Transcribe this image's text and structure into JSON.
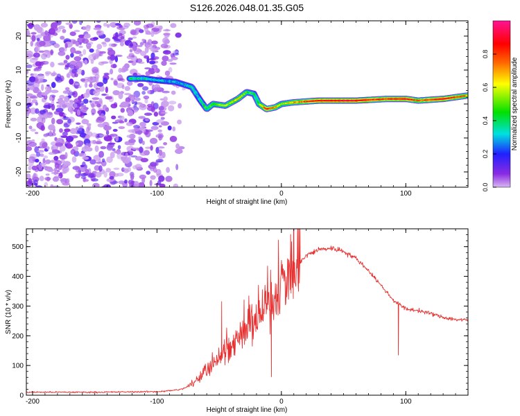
{
  "title": "S126.2026.048.01.35.G05",
  "chart_data": [
    {
      "type": "heatmap",
      "xlabel": "Height of straight line (km)",
      "ylabel": "Frequency (Hz)",
      "xlim": [
        -205,
        150
      ],
      "ylim": [
        -24.5,
        24.5
      ],
      "x_ticks": [
        -200,
        -100,
        0,
        100
      ],
      "y_ticks": [
        -20,
        -10,
        0,
        10,
        20
      ],
      "colorbar": {
        "label": "Normalized spectral amplitude",
        "range": [
          0,
          1
        ],
        "ticks": [
          0.0,
          0.2,
          0.4,
          0.6,
          0.8
        ]
      },
      "colorscale": [
        "#d8b8f0",
        "#8a2be2",
        "#2020ff",
        "#00e0e0",
        "#00e000",
        "#ffff00",
        "#ff6600",
        "#ff0000",
        "#ff1493"
      ],
      "ridge": {
        "description_x": [
          -122,
          -110,
          -100,
          -85,
          -72,
          -65,
          -60,
          -55,
          -45,
          -35,
          -28,
          -22,
          -18,
          -12,
          -5,
          0,
          10,
          30,
          60,
          85,
          100,
          110,
          130,
          150
        ],
        "description_freq": [
          7.5,
          7.5,
          7.0,
          6.5,
          5.0,
          1.0,
          -1.5,
          0.0,
          -0.5,
          1.5,
          3.5,
          3.0,
          0.0,
          -1.5,
          -1.0,
          0.0,
          0.5,
          1.0,
          1.0,
          1.5,
          1.5,
          1.0,
          1.5,
          2.5
        ],
        "peak_amplitude": [
          0.45,
          0.4,
          0.35,
          0.35,
          0.4,
          0.4,
          0.5,
          0.55,
          0.6,
          0.65,
          0.55,
          0.45,
          0.55,
          0.85,
          0.7,
          0.6,
          0.7,
          0.9,
          0.9,
          0.8,
          0.9,
          0.75,
          0.9,
          0.7
        ]
      },
      "noise_region_xlim": [
        -205,
        -85
      ]
    },
    {
      "type": "line",
      "xlabel": "Height of straight line (km)",
      "ylabel": "SNR (10 * v/v)",
      "xlim": [
        -205,
        150
      ],
      "ylim": [
        0,
        560
      ],
      "x_ticks": [
        -200,
        -100,
        0,
        100
      ],
      "y_ticks": [
        0,
        100,
        200,
        300,
        400,
        500
      ],
      "series": [
        {
          "name": "SNR",
          "color": "#e83030",
          "x": [
            -205,
            -150,
            -100,
            -90,
            -80,
            -70,
            -60,
            -50,
            -40,
            -30,
            -20,
            -10,
            0,
            10,
            20,
            30,
            40,
            50,
            60,
            70,
            80,
            90,
            100,
            110,
            120,
            130,
            140,
            150
          ],
          "y": [
            10,
            10,
            12,
            15,
            20,
            40,
            90,
            130,
            170,
            210,
            250,
            300,
            360,
            420,
            470,
            490,
            495,
            485,
            460,
            420,
            370,
            320,
            290,
            285,
            275,
            262,
            255,
            252
          ]
        }
      ],
      "notable_spikes": [
        {
          "x": -48,
          "y": 315
        },
        {
          "x": -8,
          "y": 62
        },
        {
          "x": -8,
          "y": 380
        },
        {
          "x": 15,
          "y": 560
        },
        {
          "x": 94,
          "y": 135
        }
      ]
    }
  ]
}
